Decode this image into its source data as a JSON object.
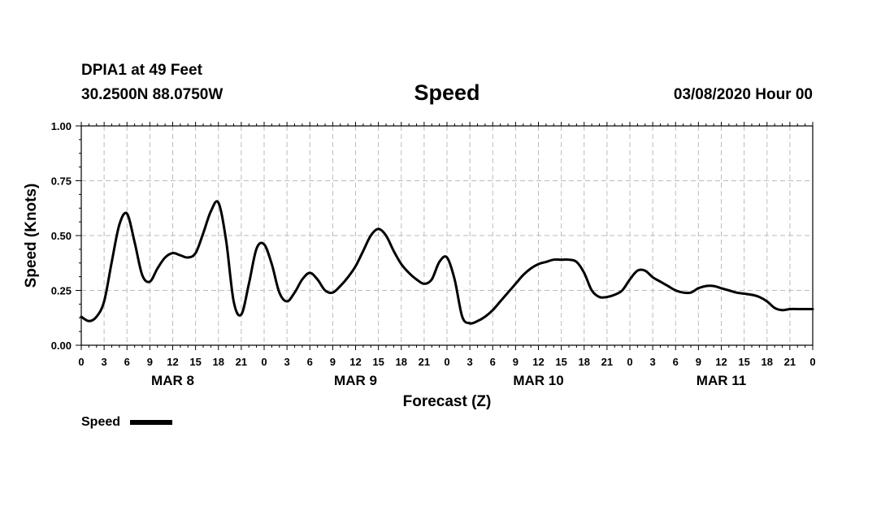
{
  "header": {
    "station": "DPIA1 at 49 Feet",
    "coords": "30.2500N 88.0750W",
    "title": "Speed",
    "datetime": "03/08/2020 Hour 00"
  },
  "legend": {
    "label": "Speed",
    "color": "#000000"
  },
  "chart_data": {
    "type": "line",
    "title": "Speed",
    "xlabel": "Forecast (Z)",
    "ylabel": "Speed (Knots)",
    "ylim": [
      0,
      1
    ],
    "yticks": [
      "0.00",
      "0.25",
      "0.50",
      "0.75",
      "1.00"
    ],
    "xlim_hours": [
      0,
      96
    ],
    "xtick_labels": [
      "0",
      "3",
      "6",
      "9",
      "12",
      "15",
      "18",
      "21",
      "0",
      "3",
      "6",
      "9",
      "12",
      "15",
      "18",
      "21",
      "0",
      "3",
      "6",
      "9",
      "12",
      "15",
      "18",
      "21",
      "0",
      "3",
      "6",
      "9",
      "12",
      "15",
      "18",
      "21",
      "0"
    ],
    "date_labels": [
      "MAR 8",
      "MAR 9",
      "MAR 10",
      "MAR 11"
    ],
    "grid": true,
    "series": [
      {
        "name": "Speed",
        "color": "#000000",
        "hours": [
          0,
          1,
          2,
          3,
          4,
          5,
          6,
          7,
          8,
          9,
          10,
          11,
          12,
          13,
          14,
          15,
          16,
          17,
          18,
          19,
          20,
          21,
          22,
          23,
          24,
          25,
          26,
          27,
          28,
          29,
          30,
          31,
          32,
          33,
          34,
          35,
          36,
          37,
          38,
          39,
          40,
          41,
          42,
          43,
          44,
          45,
          46,
          47,
          48,
          49,
          50,
          51,
          52,
          53,
          54,
          55,
          56,
          57,
          58,
          59,
          60,
          61,
          62,
          63,
          64,
          65,
          66,
          67,
          68,
          69,
          70,
          71,
          72,
          73,
          74,
          75,
          76,
          77,
          78,
          79,
          80,
          81,
          82,
          83,
          84,
          85,
          86,
          87,
          88,
          89,
          90,
          91,
          92,
          93,
          94,
          95,
          96
        ],
        "values": [
          0.13,
          0.11,
          0.13,
          0.2,
          0.38,
          0.55,
          0.6,
          0.47,
          0.32,
          0.29,
          0.35,
          0.4,
          0.42,
          0.41,
          0.4,
          0.42,
          0.51,
          0.61,
          0.65,
          0.48,
          0.2,
          0.14,
          0.28,
          0.44,
          0.46,
          0.37,
          0.24,
          0.2,
          0.24,
          0.3,
          0.33,
          0.3,
          0.25,
          0.24,
          0.27,
          0.31,
          0.36,
          0.43,
          0.5,
          0.53,
          0.5,
          0.43,
          0.37,
          0.33,
          0.3,
          0.28,
          0.3,
          0.38,
          0.4,
          0.3,
          0.13,
          0.1,
          0.11,
          0.13,
          0.16,
          0.2,
          0.24,
          0.28,
          0.32,
          0.35,
          0.37,
          0.38,
          0.39,
          0.39,
          0.39,
          0.38,
          0.33,
          0.25,
          0.22,
          0.22,
          0.23,
          0.25,
          0.3,
          0.34,
          0.34,
          0.31,
          0.29,
          0.27,
          0.25,
          0.24,
          0.24,
          0.26,
          0.27,
          0.27,
          0.26,
          0.25,
          0.24,
          0.235,
          0.23,
          0.22,
          0.2,
          0.17,
          0.16,
          0.165,
          0.165,
          0.165,
          0.165
        ]
      }
    ]
  }
}
